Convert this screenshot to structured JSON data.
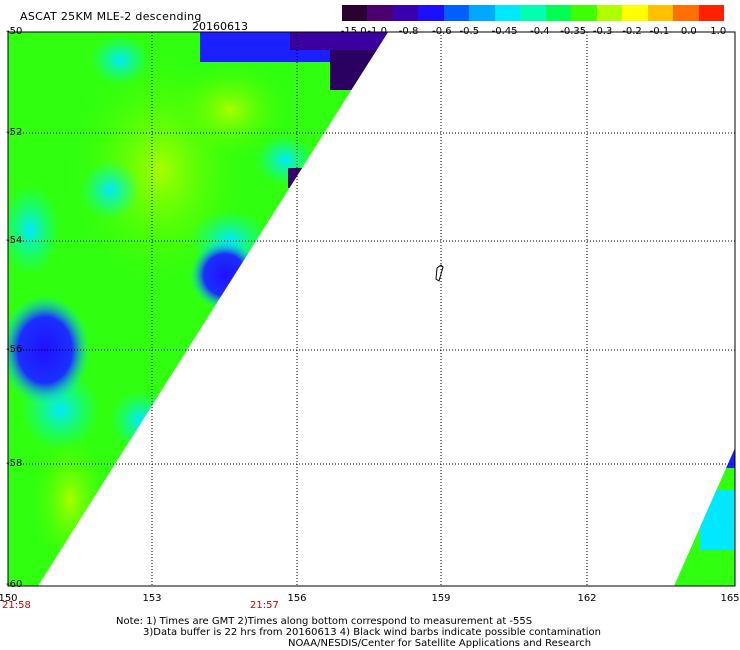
{
  "header": {
    "title": "ASCAT 25KM MLE-2 descending",
    "date": "20160613"
  },
  "colorbar": {
    "labels": [
      "-15.0",
      "-1.0",
      "-0.8",
      "-0.6",
      "-0.5",
      "-0.45",
      "-0.4",
      "-0.35",
      "-0.3",
      "-0.2",
      "-0.1",
      "0.0",
      "1.0"
    ],
    "colors": [
      "#2a0030",
      "#4c0070",
      "#3a00b0",
      "#1a10ff",
      "#0060ff",
      "#00a8ff",
      "#00e8ff",
      "#00ffb0",
      "#00ff50",
      "#40ff00",
      "#b0ff00",
      "#ffff00",
      "#ffc000",
      "#ff7000",
      "#ff2000"
    ]
  },
  "axes": {
    "lat_labels": [
      "-50",
      "-52",
      "-54",
      "-56",
      "-58",
      "-60"
    ],
    "lon_labels": [
      "150",
      "153",
      "156",
      "159",
      "162",
      "165"
    ],
    "time_labels": [
      "21:58",
      "21:57"
    ]
  },
  "notes": {
    "line1": "Note: 1) Times are GMT 2)Times along bottom correspond to measurement at -55S",
    "line2": "3)Data buffer is 22 hrs from 20160613 4) Black wind barbs indicate possible contamination",
    "line3": "NOAA/NESDIS/Center for Satellite Applications and Research"
  }
}
